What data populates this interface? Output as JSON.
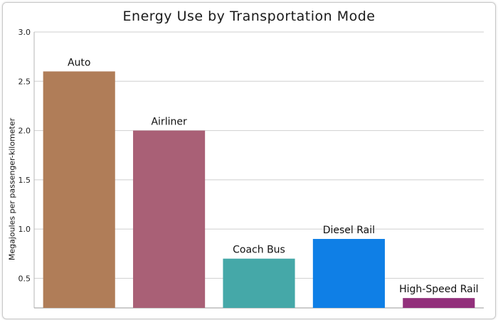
{
  "chart_data": {
    "type": "bar",
    "title": "Energy Use by Transportation Mode",
    "xlabel": "",
    "ylabel": "Megajoules per passenger-kilometer",
    "ylim": [
      0.2,
      3.0
    ],
    "yticks": [
      "0.5",
      "1.0",
      "1.5",
      "2.0",
      "2.5",
      "3.0"
    ],
    "grid": true,
    "categories": [
      "Auto",
      "Airliner",
      "Coach Bus",
      "Diesel Rail",
      "High-Speed Rail"
    ],
    "values": [
      2.6,
      2.0,
      0.7,
      0.9,
      0.3
    ],
    "colors": [
      "#b07d58",
      "#a96076",
      "#45a8a8",
      "#0f7fe6",
      "#92307b"
    ]
  }
}
